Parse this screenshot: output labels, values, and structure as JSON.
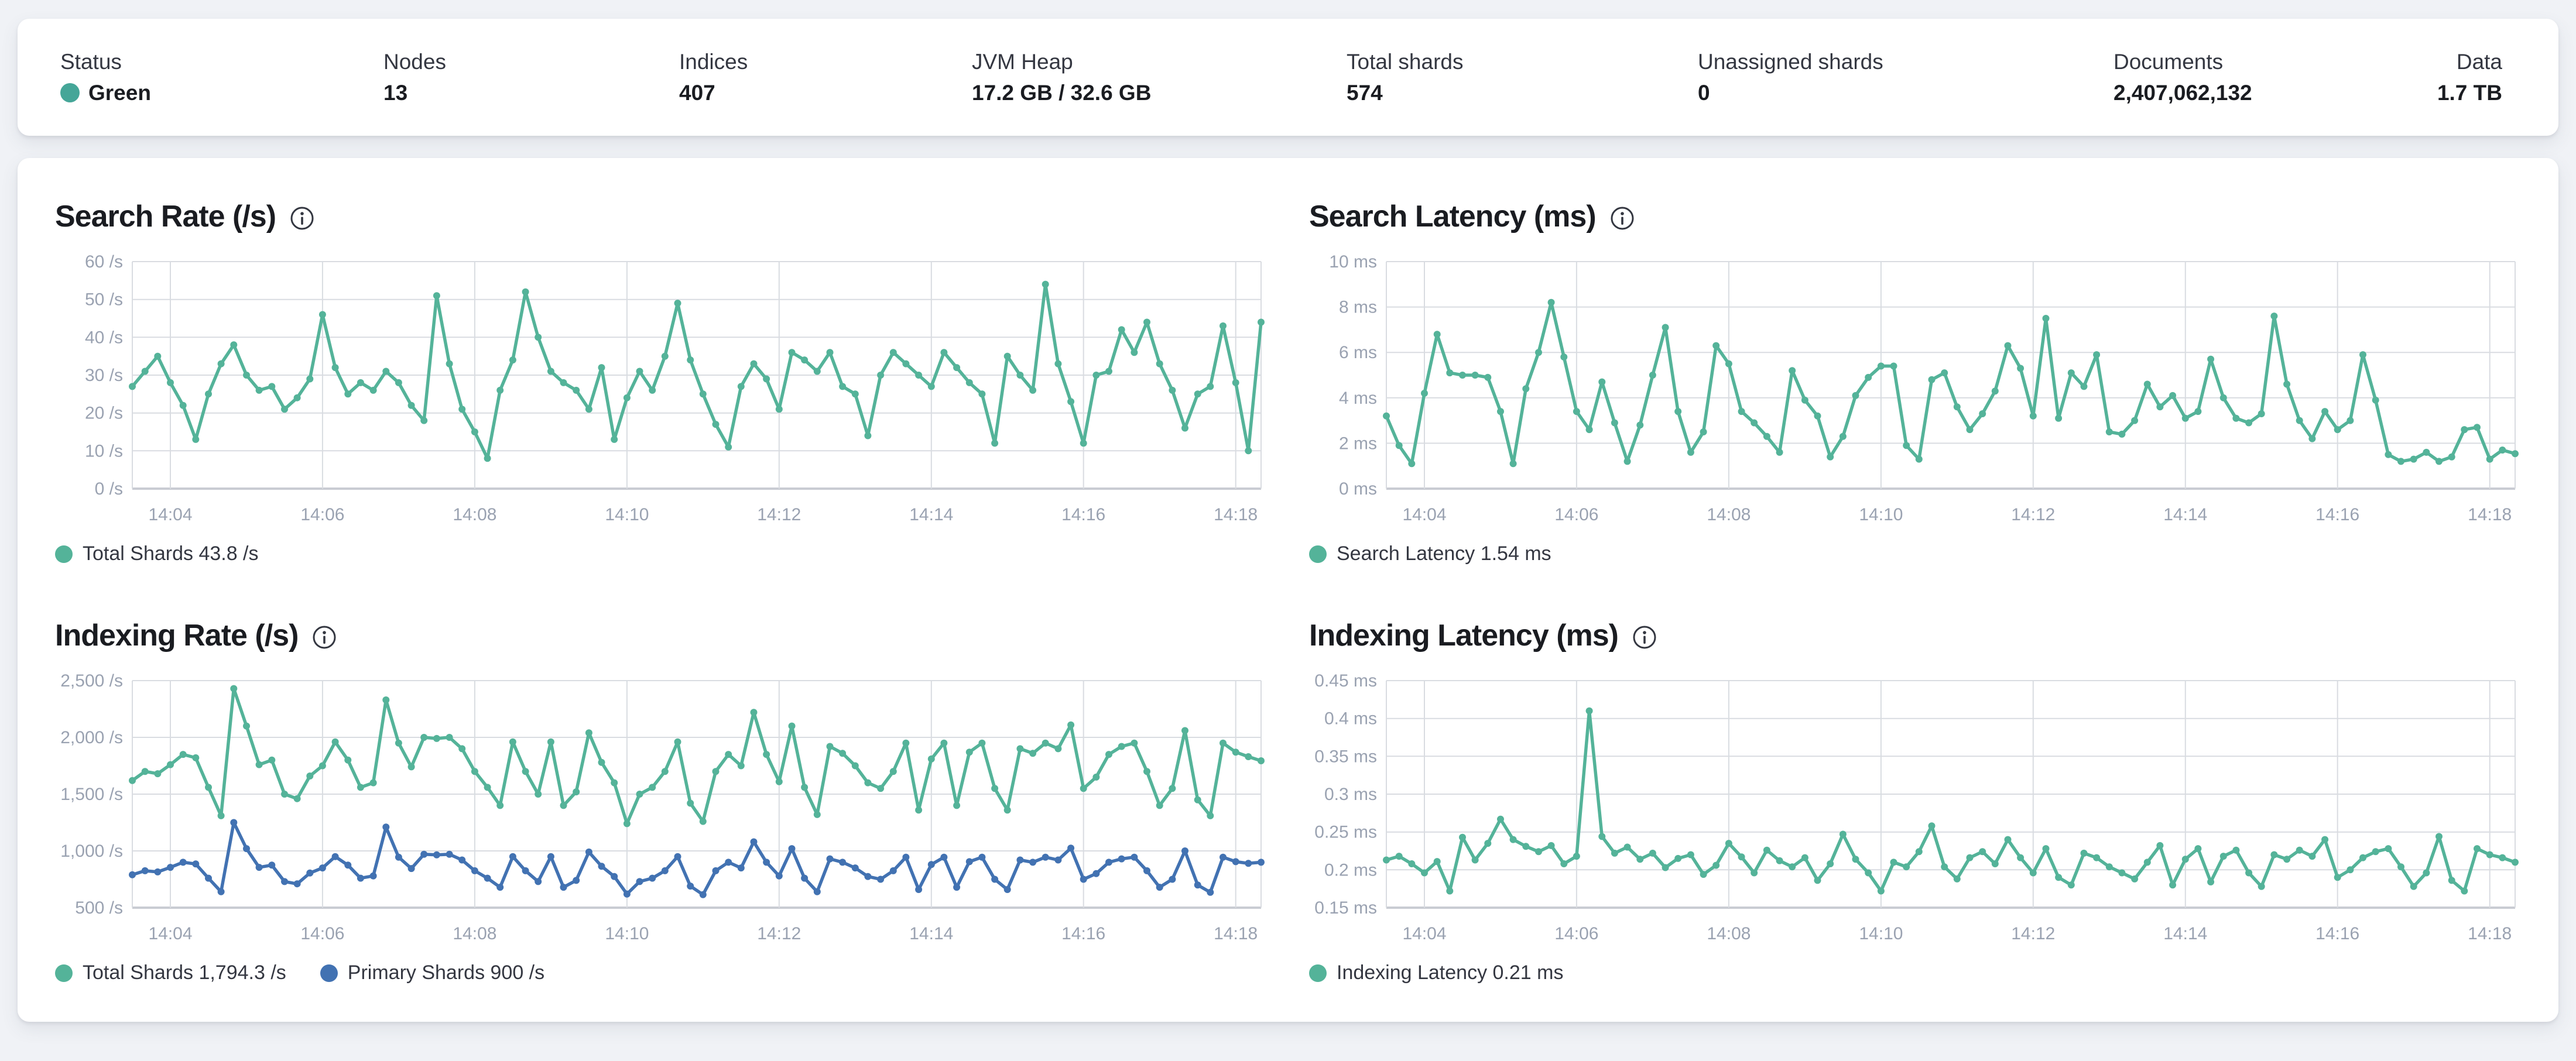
{
  "summary_bar": {
    "status_dot_color": "#45a698",
    "items": [
      {
        "label": "Status",
        "value": "Green"
      },
      {
        "label": "Nodes",
        "value": "13"
      },
      {
        "label": "Indices",
        "value": "407"
      },
      {
        "label": "JVM Heap",
        "value": "17.2 GB / 32.6 GB"
      },
      {
        "label": "Total shards",
        "value": "574"
      },
      {
        "label": "Unassigned shards",
        "value": "0"
      },
      {
        "label": "Documents",
        "value": "2,407,062,132"
      },
      {
        "label": "Data",
        "value": "1.7 TB"
      }
    ]
  },
  "colors": {
    "teal": "#54b399",
    "blue": "#4272b2",
    "grid": "#d9dce1",
    "axis": "#c9ccd3",
    "tick_text": "#9aa2b1",
    "title_text": "#1a1c21",
    "legend_text": "#343741"
  },
  "chart_data": [
    {
      "type": "line",
      "id": "search-rate",
      "title": "Search Rate (/s)",
      "ylabel": "/s",
      "ylim": [
        0,
        60
      ],
      "grid": true,
      "legend_position": "bottom-left",
      "yticks": [
        {
          "v": 60,
          "label": "60 /s"
        },
        {
          "v": 50,
          "label": "50 /s"
        },
        {
          "v": 40,
          "label": "40 /s"
        },
        {
          "v": 30,
          "label": "30 /s"
        },
        {
          "v": 20,
          "label": "20 /s"
        },
        {
          "v": 10,
          "label": "10 /s"
        },
        {
          "v": 0,
          "label": "0 /s"
        }
      ],
      "x_domain_s": [
        -30,
        860
      ],
      "x_step_s": 10,
      "xticks": [
        {
          "t": 0,
          "label": "14:04"
        },
        {
          "t": 120,
          "label": "14:06"
        },
        {
          "t": 240,
          "label": "14:08"
        },
        {
          "t": 360,
          "label": "14:10"
        },
        {
          "t": 480,
          "label": "14:12"
        },
        {
          "t": 600,
          "label": "14:14"
        },
        {
          "t": 720,
          "label": "14:16"
        },
        {
          "t": 840,
          "label": "14:18"
        }
      ],
      "series": [
        {
          "name": "Total Shards",
          "color": "#54b399",
          "values": [
            27,
            31,
            35,
            28,
            22,
            13,
            25,
            33,
            38,
            30,
            26,
            27,
            21,
            24,
            29,
            46,
            32,
            25,
            28,
            26,
            31,
            28,
            22,
            18,
            51,
            33,
            21,
            15,
            8,
            26,
            34,
            52,
            40,
            31,
            28,
            26,
            21,
            32,
            13,
            24,
            31,
            26,
            35,
            49,
            34,
            25,
            17,
            11,
            27,
            33,
            29,
            21,
            36,
            34,
            31,
            36,
            27,
            25,
            14,
            30,
            36,
            33,
            30,
            27,
            36,
            32,
            28,
            25,
            12,
            35,
            30,
            26,
            54,
            33,
            23,
            12,
            30,
            31,
            42,
            36,
            44,
            33,
            26,
            16,
            25,
            27,
            43,
            28,
            10,
            44
          ]
        }
      ],
      "legend": [
        {
          "label": "Total Shards",
          "value": "43.8 /s",
          "color": "#54b399"
        }
      ]
    },
    {
      "type": "line",
      "id": "search-latency",
      "title": "Search Latency (ms)",
      "ylabel": "ms",
      "ylim": [
        0,
        10
      ],
      "grid": true,
      "legend_position": "bottom-left",
      "yticks": [
        {
          "v": 10,
          "label": "10 ms"
        },
        {
          "v": 8,
          "label": "8 ms"
        },
        {
          "v": 6,
          "label": "6 ms"
        },
        {
          "v": 4,
          "label": "4 ms"
        },
        {
          "v": 2,
          "label": "2 ms"
        },
        {
          "v": 0,
          "label": "0 ms"
        }
      ],
      "x_domain_s": [
        -30,
        860
      ],
      "x_step_s": 10,
      "xticks": [
        {
          "t": 0,
          "label": "14:04"
        },
        {
          "t": 120,
          "label": "14:06"
        },
        {
          "t": 240,
          "label": "14:08"
        },
        {
          "t": 360,
          "label": "14:10"
        },
        {
          "t": 480,
          "label": "14:12"
        },
        {
          "t": 600,
          "label": "14:14"
        },
        {
          "t": 720,
          "label": "14:16"
        },
        {
          "t": 840,
          "label": "14:18"
        }
      ],
      "series": [
        {
          "name": "Search Latency",
          "color": "#54b399",
          "values": [
            3.2,
            1.9,
            1.1,
            4.2,
            6.8,
            5.1,
            5.0,
            5.0,
            4.9,
            3.4,
            1.1,
            4.4,
            6.0,
            8.2,
            5.8,
            3.4,
            2.6,
            4.7,
            2.9,
            1.2,
            2.8,
            5.0,
            7.1,
            3.4,
            1.6,
            2.5,
            6.3,
            5.5,
            3.4,
            2.9,
            2.3,
            1.6,
            5.2,
            3.9,
            3.2,
            1.4,
            2.3,
            4.1,
            4.9,
            5.4,
            5.4,
            1.9,
            1.3,
            4.8,
            5.1,
            3.6,
            2.6,
            3.3,
            4.3,
            6.3,
            5.3,
            3.2,
            7.5,
            3.1,
            5.1,
            4.5,
            5.9,
            2.5,
            2.4,
            3.0,
            4.6,
            3.6,
            4.1,
            3.1,
            3.4,
            5.7,
            4.0,
            3.1,
            2.9,
            3.3,
            7.6,
            4.6,
            3.0,
            2.2,
            3.4,
            2.6,
            3.0,
            5.9,
            3.9,
            1.5,
            1.2,
            1.3,
            1.6,
            1.2,
            1.4,
            2.6,
            2.7,
            1.3,
            1.7,
            1.54
          ]
        }
      ],
      "legend": [
        {
          "label": "Search Latency",
          "value": "1.54 ms",
          "color": "#54b399"
        }
      ]
    },
    {
      "type": "line",
      "id": "indexing-rate",
      "title": "Indexing Rate (/s)",
      "ylabel": "/s",
      "ylim": [
        500,
        2500
      ],
      "grid": true,
      "legend_position": "bottom-left",
      "yticks": [
        {
          "v": 2500,
          "label": "2,500 /s"
        },
        {
          "v": 2000,
          "label": "2,000 /s"
        },
        {
          "v": 1500,
          "label": "1,500 /s"
        },
        {
          "v": 1000,
          "label": "1,000 /s"
        },
        {
          "v": 500,
          "label": "500 /s"
        }
      ],
      "x_domain_s": [
        -30,
        860
      ],
      "x_step_s": 10,
      "xticks": [
        {
          "t": 0,
          "label": "14:04"
        },
        {
          "t": 120,
          "label": "14:06"
        },
        {
          "t": 240,
          "label": "14:08"
        },
        {
          "t": 360,
          "label": "14:10"
        },
        {
          "t": 480,
          "label": "14:12"
        },
        {
          "t": 600,
          "label": "14:14"
        },
        {
          "t": 720,
          "label": "14:16"
        },
        {
          "t": 840,
          "label": "14:18"
        }
      ],
      "series": [
        {
          "name": "Total Shards",
          "color": "#54b399",
          "values": [
            1620,
            1700,
            1680,
            1760,
            1850,
            1820,
            1560,
            1310,
            2430,
            2100,
            1760,
            1800,
            1500,
            1460,
            1660,
            1750,
            1960,
            1800,
            1560,
            1600,
            2330,
            1950,
            1740,
            2000,
            1990,
            2000,
            1900,
            1700,
            1560,
            1400,
            1960,
            1700,
            1500,
            1960,
            1400,
            1520,
            2040,
            1780,
            1600,
            1240,
            1500,
            1560,
            1700,
            1960,
            1420,
            1260,
            1700,
            1850,
            1750,
            2220,
            1850,
            1610,
            2100,
            1560,
            1320,
            1920,
            1860,
            1750,
            1600,
            1550,
            1700,
            1950,
            1360,
            1810,
            1950,
            1400,
            1870,
            1950,
            1550,
            1360,
            1900,
            1860,
            1950,
            1900,
            2110,
            1550,
            1650,
            1850,
            1920,
            1950,
            1700,
            1400,
            1550,
            2060,
            1450,
            1310,
            1950,
            1870,
            1830,
            1794
          ]
        },
        {
          "name": "Primary Shards",
          "color": "#4272b2",
          "values": [
            790,
            825,
            815,
            855,
            900,
            885,
            760,
            640,
            1250,
            1020,
            855,
            875,
            730,
            710,
            805,
            850,
            950,
            875,
            760,
            780,
            1210,
            945,
            845,
            970,
            965,
            970,
            920,
            825,
            760,
            680,
            950,
            825,
            730,
            950,
            680,
            740,
            990,
            865,
            775,
            620,
            730,
            760,
            825,
            950,
            690,
            615,
            825,
            900,
            850,
            1080,
            900,
            780,
            1020,
            760,
            640,
            930,
            900,
            850,
            775,
            750,
            825,
            945,
            660,
            880,
            945,
            680,
            905,
            945,
            750,
            660,
            920,
            900,
            945,
            920,
            1025,
            750,
            800,
            900,
            930,
            945,
            825,
            680,
            750,
            1000,
            700,
            635,
            945,
            905,
            890,
            900
          ]
        }
      ],
      "legend": [
        {
          "label": "Total Shards",
          "value": "1,794.3 /s",
          "color": "#54b399"
        },
        {
          "label": "Primary Shards",
          "value": "900 /s",
          "color": "#4272b2"
        }
      ]
    },
    {
      "type": "line",
      "id": "indexing-latency",
      "title": "Indexing Latency (ms)",
      "ylabel": "ms",
      "ylim": [
        0.15,
        0.45
      ],
      "grid": true,
      "legend_position": "bottom-left",
      "yticks": [
        {
          "v": 0.45,
          "label": "0.45 ms"
        },
        {
          "v": 0.4,
          "label": "0.4 ms"
        },
        {
          "v": 0.35,
          "label": "0.35 ms"
        },
        {
          "v": 0.3,
          "label": "0.3 ms"
        },
        {
          "v": 0.25,
          "label": "0.25 ms"
        },
        {
          "v": 0.2,
          "label": "0.2 ms"
        },
        {
          "v": 0.15,
          "label": "0.15 ms"
        }
      ],
      "x_domain_s": [
        -30,
        860
      ],
      "x_step_s": 10,
      "xticks": [
        {
          "t": 0,
          "label": "14:04"
        },
        {
          "t": 120,
          "label": "14:06"
        },
        {
          "t": 240,
          "label": "14:08"
        },
        {
          "t": 360,
          "label": "14:10"
        },
        {
          "t": 480,
          "label": "14:12"
        },
        {
          "t": 600,
          "label": "14:14"
        },
        {
          "t": 720,
          "label": "14:16"
        },
        {
          "t": 840,
          "label": "14:18"
        }
      ],
      "series": [
        {
          "name": "Indexing Latency",
          "color": "#54b399",
          "values": [
            0.213,
            0.218,
            0.208,
            0.196,
            0.211,
            0.172,
            0.243,
            0.213,
            0.235,
            0.267,
            0.24,
            0.231,
            0.224,
            0.232,
            0.208,
            0.218,
            0.41,
            0.244,
            0.222,
            0.23,
            0.214,
            0.222,
            0.203,
            0.215,
            0.22,
            0.194,
            0.206,
            0.235,
            0.217,
            0.196,
            0.226,
            0.212,
            0.204,
            0.216,
            0.186,
            0.208,
            0.247,
            0.214,
            0.196,
            0.172,
            0.21,
            0.204,
            0.224,
            0.258,
            0.204,
            0.188,
            0.216,
            0.224,
            0.208,
            0.24,
            0.216,
            0.196,
            0.228,
            0.19,
            0.18,
            0.222,
            0.216,
            0.204,
            0.196,
            0.188,
            0.21,
            0.232,
            0.18,
            0.214,
            0.228,
            0.184,
            0.218,
            0.226,
            0.196,
            0.178,
            0.22,
            0.214,
            0.226,
            0.218,
            0.24,
            0.19,
            0.2,
            0.216,
            0.224,
            0.228,
            0.204,
            0.178,
            0.196,
            0.244,
            0.186,
            0.172,
            0.228,
            0.22,
            0.216,
            0.21
          ]
        }
      ],
      "legend": [
        {
          "label": "Indexing Latency",
          "value": "0.21 ms",
          "color": "#54b399"
        }
      ]
    }
  ]
}
